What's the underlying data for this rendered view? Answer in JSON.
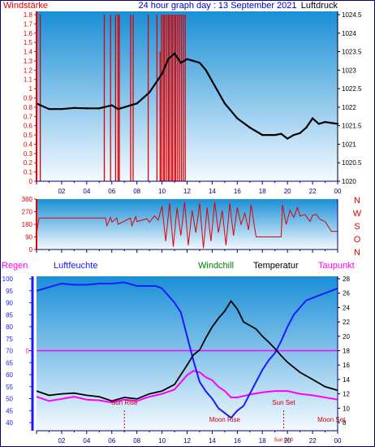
{
  "header": {
    "left_label": "Windstärke",
    "title": "24 hour graph day : 13 September 2021",
    "right_label": "Luftdruck"
  },
  "colors": {
    "wind": "#e00000",
    "pressure": "#000000",
    "direction": "#e00000",
    "humidity": "#1a1aff",
    "temperature": "#000000",
    "dewpoint": "#ff00ff",
    "regen": "#ff00ff",
    "windchill": "#008000",
    "sun_moon": "#cc0000",
    "axis": "#000080"
  },
  "panel3_labels": {
    "regen": "Regen",
    "luftfeuchte": "Luftfeuchte",
    "windchill": "Windchill",
    "temperatur": "Temperatur",
    "taupunkt": "Taupunkt"
  },
  "compass_letters": [
    "N",
    "W",
    "S",
    "O",
    "N"
  ],
  "x_tick_labels": [
    "02",
    "04",
    "06",
    "08",
    "10",
    "12",
    "14",
    "16",
    "18",
    "20",
    "22",
    "00"
  ],
  "events": [
    {
      "label": "Sun Rise",
      "hour": 7.0
    },
    {
      "label": "Moon Rise",
      "hour": 15.0
    },
    {
      "label": "Sun Set",
      "hour": 19.7
    },
    {
      "label": "Moon Set",
      "hour": 23.5
    },
    {
      "label": "Sun 22:0",
      "hour": 19.7
    }
  ],
  "chart_data": [
    {
      "name": "wind-pressure",
      "type": "line",
      "x_range": [
        0,
        24
      ],
      "y_left": {
        "label": "Windstärke",
        "range": [
          0,
          1.8
        ],
        "ticks": [
          "0",
          "0.1",
          "0.2",
          "0.3",
          "0.4",
          "0.5",
          "0.6",
          "0.7",
          "0.8",
          "0.9",
          "1",
          "1.1",
          "1.2",
          "1.3",
          "1.4",
          "1.5",
          "1.6",
          "1.7",
          "1.8"
        ]
      },
      "y_right": {
        "label": "Luftdruck",
        "range": [
          1020,
          1024.5
        ],
        "ticks": [
          "1020",
          "1020.5",
          "1021",
          "1021.5",
          "1022",
          "1022.5",
          "1023",
          "1023.5",
          "1024",
          "1024.5"
        ]
      },
      "pressure": {
        "x": [
          0,
          1,
          2,
          3,
          4,
          5,
          6,
          6.5,
          7,
          7.5,
          8,
          9,
          10,
          10.5,
          11,
          11.5,
          12,
          12.5,
          13,
          13.5,
          14,
          15,
          16,
          17,
          18,
          19,
          19.5,
          20,
          20.5,
          21,
          21.5,
          22,
          22.5,
          23,
          24
        ],
        "values": [
          1022.1,
          1021.95,
          1021.95,
          1021.98,
          1021.97,
          1021.97,
          1022.05,
          1021.95,
          1022.0,
          1022.05,
          1022.1,
          1022.4,
          1022.9,
          1023.3,
          1023.45,
          1023.2,
          1023.3,
          1023.25,
          1023.2,
          1023.0,
          1022.7,
          1022.1,
          1021.7,
          1021.45,
          1021.25,
          1021.25,
          1021.28,
          1021.15,
          1021.25,
          1021.3,
          1021.45,
          1021.7,
          1021.55,
          1021.6,
          1021.55
        ]
      },
      "wind_gust_hours": [
        0.3,
        5.4,
        5.9,
        6.3,
        6.5,
        6.6,
        7.5,
        7.7,
        8.9,
        9.6,
        9.85,
        9.95,
        10.1,
        10.2,
        10.35,
        10.5,
        10.6,
        10.75,
        10.85,
        11.0,
        11.1,
        11.25,
        11.4,
        11.55,
        11.7,
        11.85
      ],
      "wind_gust_values": [
        1.8,
        1.8,
        1.8,
        1.8,
        1.8,
        1.8,
        1.8,
        1.8,
        1.8,
        1.8,
        1.4,
        1.8,
        1.8,
        1.8,
        1.8,
        1.8,
        1.8,
        1.8,
        1.8,
        1.8,
        1.8,
        1.8,
        1.8,
        1.8,
        1.8,
        1.8
      ]
    },
    {
      "name": "wind-direction",
      "type": "line",
      "x_range": [
        0,
        24
      ],
      "y": {
        "range": [
          0,
          360
        ],
        "ticks": [
          "0",
          "90",
          "180",
          "270",
          "360"
        ]
      },
      "direction": {
        "x": [
          0,
          0.2,
          5.5,
          5.6,
          5.9,
          6.0,
          6.4,
          6.5,
          7.5,
          7.6,
          7.9,
          8.0,
          8.8,
          9.0,
          9.4,
          9.7,
          10.0,
          10.3,
          10.6,
          10.9,
          11.2,
          11.5,
          11.8,
          12.1,
          12.4,
          12.7,
          13.0,
          13.3,
          13.6,
          13.9,
          14.2,
          14.5,
          14.8,
          15.1,
          15.4,
          15.7,
          16.0,
          16.3,
          16.6,
          16.9,
          17.1,
          17.5,
          18.0,
          19.0,
          19.5,
          19.6,
          19.9,
          20.2,
          20.5,
          20.8,
          21.0,
          21.4,
          21.8,
          22.0,
          22.3,
          22.6,
          23.0,
          23.5,
          24
        ],
        "values": [
          120,
          225,
          225,
          170,
          230,
          195,
          225,
          180,
          225,
          170,
          235,
          200,
          220,
          195,
          240,
          210,
          310,
          60,
          330,
          20,
          300,
          100,
          340,
          30,
          280,
          120,
          330,
          10,
          300,
          60,
          340,
          120,
          280,
          30,
          330,
          100,
          300,
          180,
          260,
          140,
          320,
          90,
          90,
          90,
          90,
          320,
          180,
          280,
          230,
          300,
          240,
          250,
          200,
          245,
          250,
          215,
          200,
          130,
          130
        ]
      }
    },
    {
      "name": "humidity-temperature",
      "type": "line",
      "x_range": [
        0,
        24
      ],
      "y_left": {
        "label": "Luftfeuchte",
        "range": [
          40,
          100
        ],
        "ticks": [
          "40",
          "45",
          "50",
          "55",
          "60",
          "65",
          "70",
          "75",
          "80",
          "85",
          "90",
          "95",
          "100"
        ]
      },
      "y_right": {
        "label": "Temperatur",
        "range": [
          8,
          28
        ],
        "ticks": [
          "8",
          "10",
          "12",
          "14",
          "16",
          "18",
          "20",
          "22",
          "24",
          "26",
          "28"
        ]
      },
      "regen_label": "0",
      "humidity": {
        "x": [
          0,
          1,
          2,
          3,
          4,
          5,
          6,
          7,
          8,
          9,
          9.5,
          10,
          10.5,
          11,
          11.5,
          12,
          12.5,
          13,
          13.5,
          14,
          14.5,
          15,
          15.5,
          16,
          16.5,
          17,
          17.5,
          18,
          18.5,
          19,
          19.5,
          20,
          20.5,
          21,
          21.5,
          22,
          22.5,
          23,
          24
        ],
        "values": [
          95,
          96.5,
          98,
          97.5,
          97.5,
          98,
          98,
          98.5,
          97,
          97,
          97,
          96,
          93,
          90,
          86,
          76,
          66,
          57,
          53,
          50,
          46,
          44,
          42,
          45,
          47,
          52,
          57,
          62,
          66,
          69,
          74,
          80,
          85,
          88,
          91,
          92,
          93,
          94,
          96
        ]
      },
      "temperature": {
        "x": [
          0,
          1,
          2,
          3,
          4,
          5,
          6,
          7,
          8,
          9,
          10,
          11,
          12,
          12.5,
          13,
          13.5,
          14,
          14.5,
          15,
          15.5,
          16,
          16.5,
          17,
          17.5,
          18,
          18.5,
          19,
          19.5,
          20,
          20.5,
          21,
          22,
          23,
          24
        ],
        "values": [
          12.4,
          11.8,
          12.0,
          12.1,
          11.8,
          11.6,
          11.0,
          11.5,
          11.3,
          12.0,
          12.4,
          13.3,
          16.0,
          17.4,
          18.1,
          19.8,
          21.3,
          22.5,
          23.5,
          24.9,
          23.8,
          22.0,
          21.5,
          21.0,
          20.0,
          19.2,
          18.3,
          17.3,
          16.4,
          15.7,
          15.0,
          14.0,
          13.0,
          12.5
        ]
      },
      "dewpoint": {
        "x": [
          0,
          1,
          2,
          3,
          4,
          5,
          6,
          7,
          8,
          9,
          10,
          11,
          12,
          12.5,
          13,
          13.5,
          14,
          14.5,
          15,
          15.5,
          16,
          17,
          18,
          19,
          20,
          21,
          22,
          23,
          24
        ],
        "values": [
          11.6,
          11.0,
          11.3,
          11.6,
          11.2,
          11.1,
          10.8,
          11.2,
          11.0,
          11.6,
          12.0,
          12.6,
          14.6,
          15.2,
          15.0,
          14.3,
          13.9,
          13.0,
          12.4,
          11.5,
          11.5,
          11.9,
          12.2,
          12.4,
          12.4,
          12.0,
          11.8,
          11.5,
          11.2
        ]
      }
    }
  ]
}
